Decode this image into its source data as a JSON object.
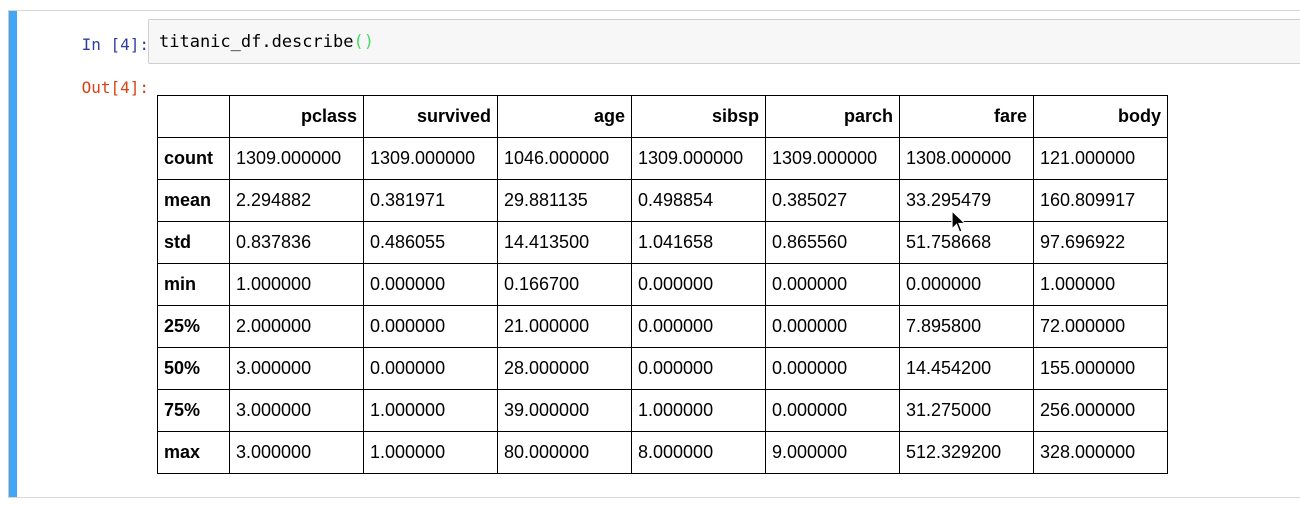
{
  "input_cell": {
    "prompt": "In [4]:",
    "code_text": "titanic_df.describe",
    "code_parens": "()"
  },
  "output_cell": {
    "prompt": "Out[4]:"
  },
  "table": {
    "index_header": "",
    "columns": [
      "pclass",
      "survived",
      "age",
      "sibsp",
      "parch",
      "fare",
      "body"
    ],
    "rows": [
      {
        "label": "count",
        "values": [
          "1309.000000",
          "1309.000000",
          "1046.000000",
          "1309.000000",
          "1309.000000",
          "1308.000000",
          "121.000000"
        ]
      },
      {
        "label": "mean",
        "values": [
          "2.294882",
          "0.381971",
          "29.881135",
          "0.498854",
          "0.385027",
          "33.295479",
          "160.809917"
        ]
      },
      {
        "label": "std",
        "values": [
          "0.837836",
          "0.486055",
          "14.413500",
          "1.041658",
          "0.865560",
          "51.758668",
          "97.696922"
        ]
      },
      {
        "label": "min",
        "values": [
          "1.000000",
          "0.000000",
          "0.166700",
          "0.000000",
          "0.000000",
          "0.000000",
          "1.000000"
        ]
      },
      {
        "label": "25%",
        "values": [
          "2.000000",
          "0.000000",
          "21.000000",
          "0.000000",
          "0.000000",
          "7.895800",
          "72.000000"
        ]
      },
      {
        "label": "50%",
        "values": [
          "3.000000",
          "0.000000",
          "28.000000",
          "0.000000",
          "0.000000",
          "14.454200",
          "155.000000"
        ]
      },
      {
        "label": "75%",
        "values": [
          "3.000000",
          "1.000000",
          "39.000000",
          "1.000000",
          "0.000000",
          "31.275000",
          "256.000000"
        ]
      },
      {
        "label": "max",
        "values": [
          "3.000000",
          "1.000000",
          "80.000000",
          "8.000000",
          "9.000000",
          "512.329200",
          "328.000000"
        ]
      }
    ]
  },
  "colors": {
    "cell_bar": "#42a5f5",
    "in_prompt": "#303f9f",
    "out_prompt": "#d84315",
    "paren_highlight": "#4cd964"
  },
  "icons": {
    "cursor": "mouse-pointer-icon"
  }
}
